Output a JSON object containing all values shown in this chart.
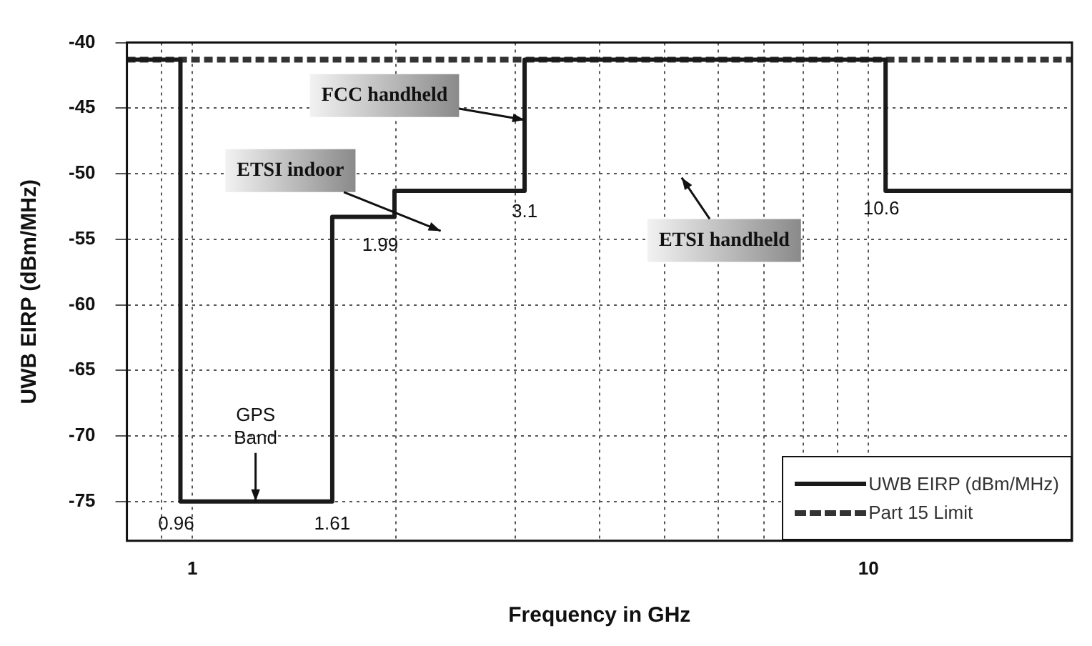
{
  "chart_data": {
    "type": "step",
    "xlabel": "Frequency in GHz",
    "ylabel": "UWB EIRP (dBm/MHz)",
    "xlim": [
      0.8,
      20
    ],
    "ylim": [
      -78,
      -40
    ],
    "log": "x",
    "xticks": [
      {
        "value": 0.9,
        "label": null
      },
      1,
      {
        "value": 2,
        "label": null
      },
      {
        "value": 3,
        "label": null
      },
      {
        "value": 4,
        "label": null
      },
      {
        "value": 5,
        "label": null
      },
      {
        "value": 6,
        "label": null
      },
      {
        "value": 7,
        "label": null
      },
      {
        "value": 8,
        "label": null
      },
      {
        "value": 9,
        "label": null
      },
      10
    ],
    "yticks": [
      -75,
      -70,
      -65,
      -60,
      -55,
      -50,
      -45,
      -40
    ],
    "grid": true,
    "legend": "bottom right",
    "series": [
      {
        "name": "UWB EIRP (dBm/MHz)",
        "color": "#1a1a1a",
        "line_style": "solid",
        "x": [
          0.8,
          0.96,
          1.61,
          1.99,
          3.1,
          10.6,
          20
        ],
        "values": [
          -41.3,
          -75,
          -53.3,
          -51.3,
          -41.3,
          -51.3,
          -51.3
        ]
      },
      {
        "name": "Part 15 Limit",
        "color": "#333333",
        "line_style": "dashed",
        "x": [
          0.8,
          20
        ],
        "values": [
          -41.3,
          -41.3
        ]
      }
    ],
    "annotations": [
      {
        "text": "FCC handheld",
        "x": 3.1,
        "y": -45.9
      },
      "ETSI indoor",
      "ETSI handheld",
      {
        "text": "GPS Band",
        "x": 1.24,
        "y": -75
      },
      {
        "text": "0.96",
        "x": 0.96,
        "y": -75
      },
      {
        "text": "1.61",
        "x": 1.61,
        "y": -75
      },
      {
        "text": "1.99",
        "x": 1.99,
        "y": -53.3
      },
      {
        "text": "3.1",
        "x": 3.1,
        "y": -51.3
      },
      {
        "text": "10.6",
        "x": 10.6,
        "y": -51.3
      }
    ]
  }
}
